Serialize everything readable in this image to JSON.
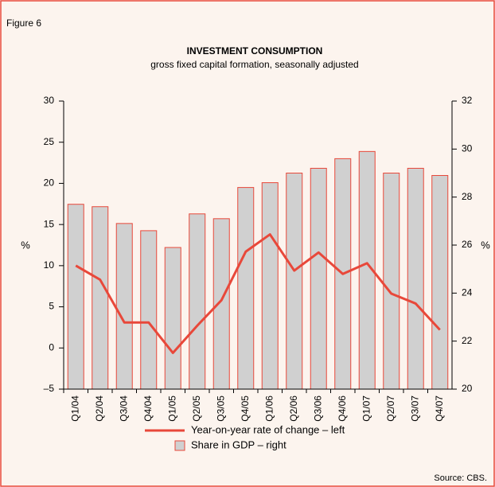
{
  "chart_data": {
    "type": "bar_line",
    "figure_label": "Figure 6",
    "title": "INVESTMENT CONSUMPTION",
    "subtitle": "gross fixed capital formation, seasonally adjusted",
    "y_label": "%",
    "y2_label": "%",
    "source": "Source: CBS.",
    "categories": [
      "Q1/04",
      "Q2/04",
      "Q3/04",
      "Q4/04",
      "Q1/05",
      "Q2/05",
      "Q3/05",
      "Q4/05",
      "Q1/06",
      "Q2/06",
      "Q3/06",
      "Q4/06",
      "Q1/07",
      "Q2/07",
      "Q3/07",
      "Q4/07"
    ],
    "series": [
      {
        "name": "Year-on-year rate of change – left",
        "type": "line",
        "axis": "y",
        "color": "#e8483a",
        "values": [
          10,
          8.3,
          3.1,
          3.1,
          -0.6,
          2.7,
          5.8,
          11.7,
          13.8,
          9.4,
          11.6,
          9.0,
          10.3,
          6.6,
          5.4,
          2.2
        ]
      },
      {
        "name": "Share in GDP – right",
        "type": "bar",
        "axis": "y2",
        "color": "#d0d0d0",
        "values": [
          27.7,
          27.6,
          26.9,
          26.6,
          25.9,
          27.3,
          27.1,
          28.4,
          28.6,
          29.0,
          29.2,
          29.6,
          29.9,
          29.0,
          29.2,
          28.9
        ]
      }
    ],
    "ylim": [
      -5,
      30
    ],
    "yticks": [
      {
        "value": -5,
        "label": "–5"
      },
      0,
      5,
      10,
      15,
      20,
      25,
      30
    ],
    "y2lim": [
      20,
      32
    ],
    "y2ticks": [
      20,
      22,
      24,
      26,
      28,
      30,
      32
    ]
  }
}
